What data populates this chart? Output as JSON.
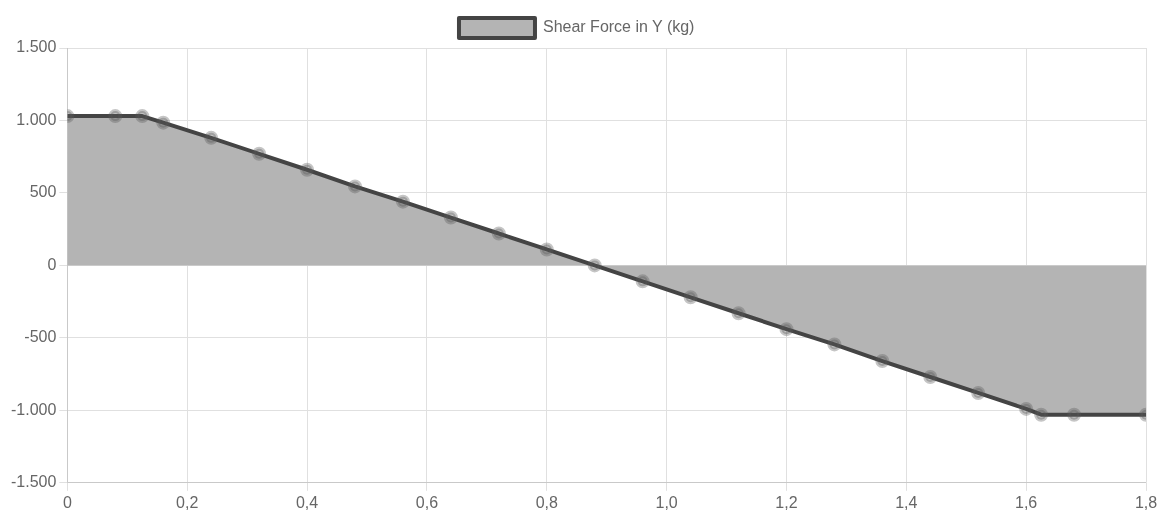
{
  "chart_data": {
    "type": "area",
    "x": [
      0,
      0.08,
      0.125,
      0.16,
      0.24,
      0.32,
      0.4,
      0.48,
      0.56,
      0.64,
      0.72,
      0.8,
      0.88,
      0.96,
      1.04,
      1.12,
      1.2,
      1.28,
      1.36,
      1.44,
      1.52,
      1.6,
      1.625,
      1.68,
      1.8
    ],
    "series": [
      {
        "name": "Shear Force in Y (kg)",
        "color": "#444444",
        "values": [
          1030,
          1030,
          1030,
          985,
          880,
          770,
          660,
          545,
          440,
          330,
          220,
          110,
          0,
          -110,
          -220,
          -330,
          -440,
          -545,
          -660,
          -770,
          -880,
          -990,
          -1030,
          -1030,
          -1030
        ]
      }
    ],
    "xlim": [
      0,
      1.8
    ],
    "xticks": [
      {
        "value": 0,
        "label": "0"
      },
      {
        "value": 0.2,
        "label": "0,2"
      },
      {
        "value": 0.4,
        "label": "0,4"
      },
      {
        "value": 0.6,
        "label": "0,6"
      },
      {
        "value": 0.8,
        "label": "0,8"
      },
      {
        "value": 1,
        "label": "1,0"
      },
      {
        "value": 1.2,
        "label": "1,2"
      },
      {
        "value": 1.4,
        "label": "1,4"
      },
      {
        "value": 1.6,
        "label": "1,6"
      },
      {
        "value": 1.8,
        "label": "1,8"
      }
    ],
    "ylim": [
      -1500,
      1500
    ],
    "yticks": [
      {
        "value": -1500,
        "label": "-1.500"
      },
      {
        "value": -1000,
        "label": "-1.000"
      },
      {
        "value": -500,
        "label": "-500"
      },
      {
        "value": 0,
        "label": "0"
      },
      {
        "value": 500,
        "label": "500"
      },
      {
        "value": 1000,
        "label": "1.000"
      },
      {
        "value": 1500,
        "label": "1.500"
      }
    ],
    "grid": true,
    "legend": "top",
    "marker": "circle"
  }
}
